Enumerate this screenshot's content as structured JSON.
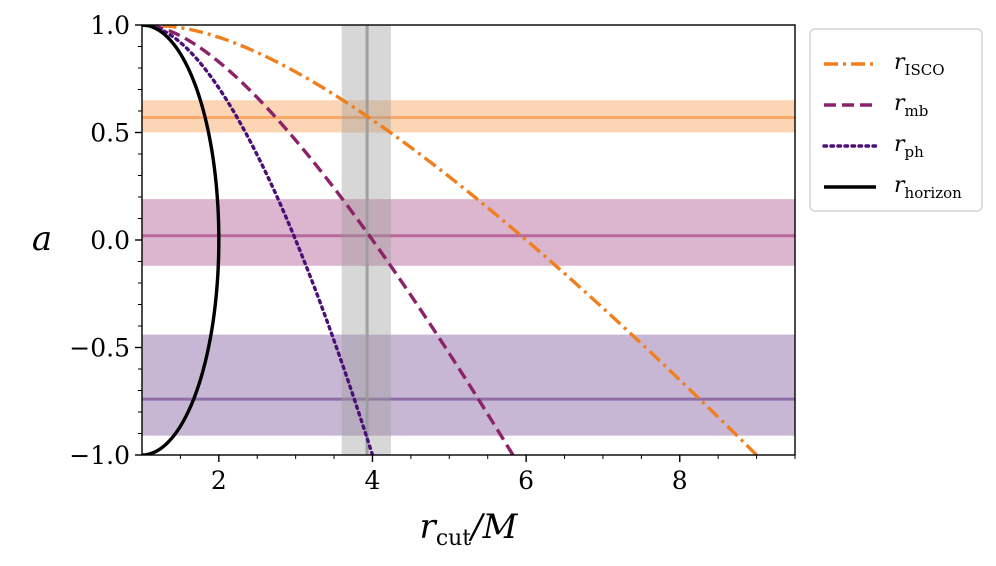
{
  "chart_data": {
    "type": "line",
    "xlabel": "r_cut/M",
    "xlabel_main": "r",
    "xlabel_sub": "cut",
    "xlabel_tail": "/M",
    "ylabel": "a",
    "xlim": [
      1,
      9.5
    ],
    "ylim": [
      -1.0,
      1.0
    ],
    "x_ticks": [
      2,
      4,
      6,
      8
    ],
    "x_tick_labels": [
      "2",
      "4",
      "6",
      "8"
    ],
    "y_ticks": [
      1.0,
      0.5,
      0.0,
      -0.5,
      -1.0
    ],
    "y_tick_labels": [
      "1.0",
      "0.5",
      "0.0",
      "−0.5",
      "−1.0"
    ],
    "grid": false,
    "legend_position": "outside-top-right",
    "series": [
      {
        "name": "r_ISCO",
        "label_main": "r",
        "label_sub": "ISCO",
        "color": "#f07f1e",
        "style": "dashdot",
        "curve": "isco"
      },
      {
        "name": "r_mb",
        "label_main": "r",
        "label_sub": "mb",
        "color": "#8c2369",
        "style": "dashed",
        "curve": "mb"
      },
      {
        "name": "r_ph",
        "label_main": "r",
        "label_sub": "ph",
        "color": "#4a1078",
        "style": "dotted",
        "curve": "ph"
      },
      {
        "name": "r_horizon",
        "label_main": "r",
        "label_sub": "horizon",
        "color": "#000000",
        "style": "solid",
        "curve": "horizon"
      }
    ],
    "horizontal_bands": [
      {
        "center": 0.57,
        "low": 0.5,
        "high": 0.65,
        "color": "#f9a15a"
      },
      {
        "center": 0.02,
        "low": -0.12,
        "high": 0.19,
        "color": "#b15a93"
      },
      {
        "center": -0.74,
        "low": -0.91,
        "high": -0.44,
        "color": "#85609f"
      }
    ],
    "vertical_band": {
      "center": 3.93,
      "low": 3.6,
      "high": 4.24,
      "color": "#9a9a9a"
    }
  }
}
